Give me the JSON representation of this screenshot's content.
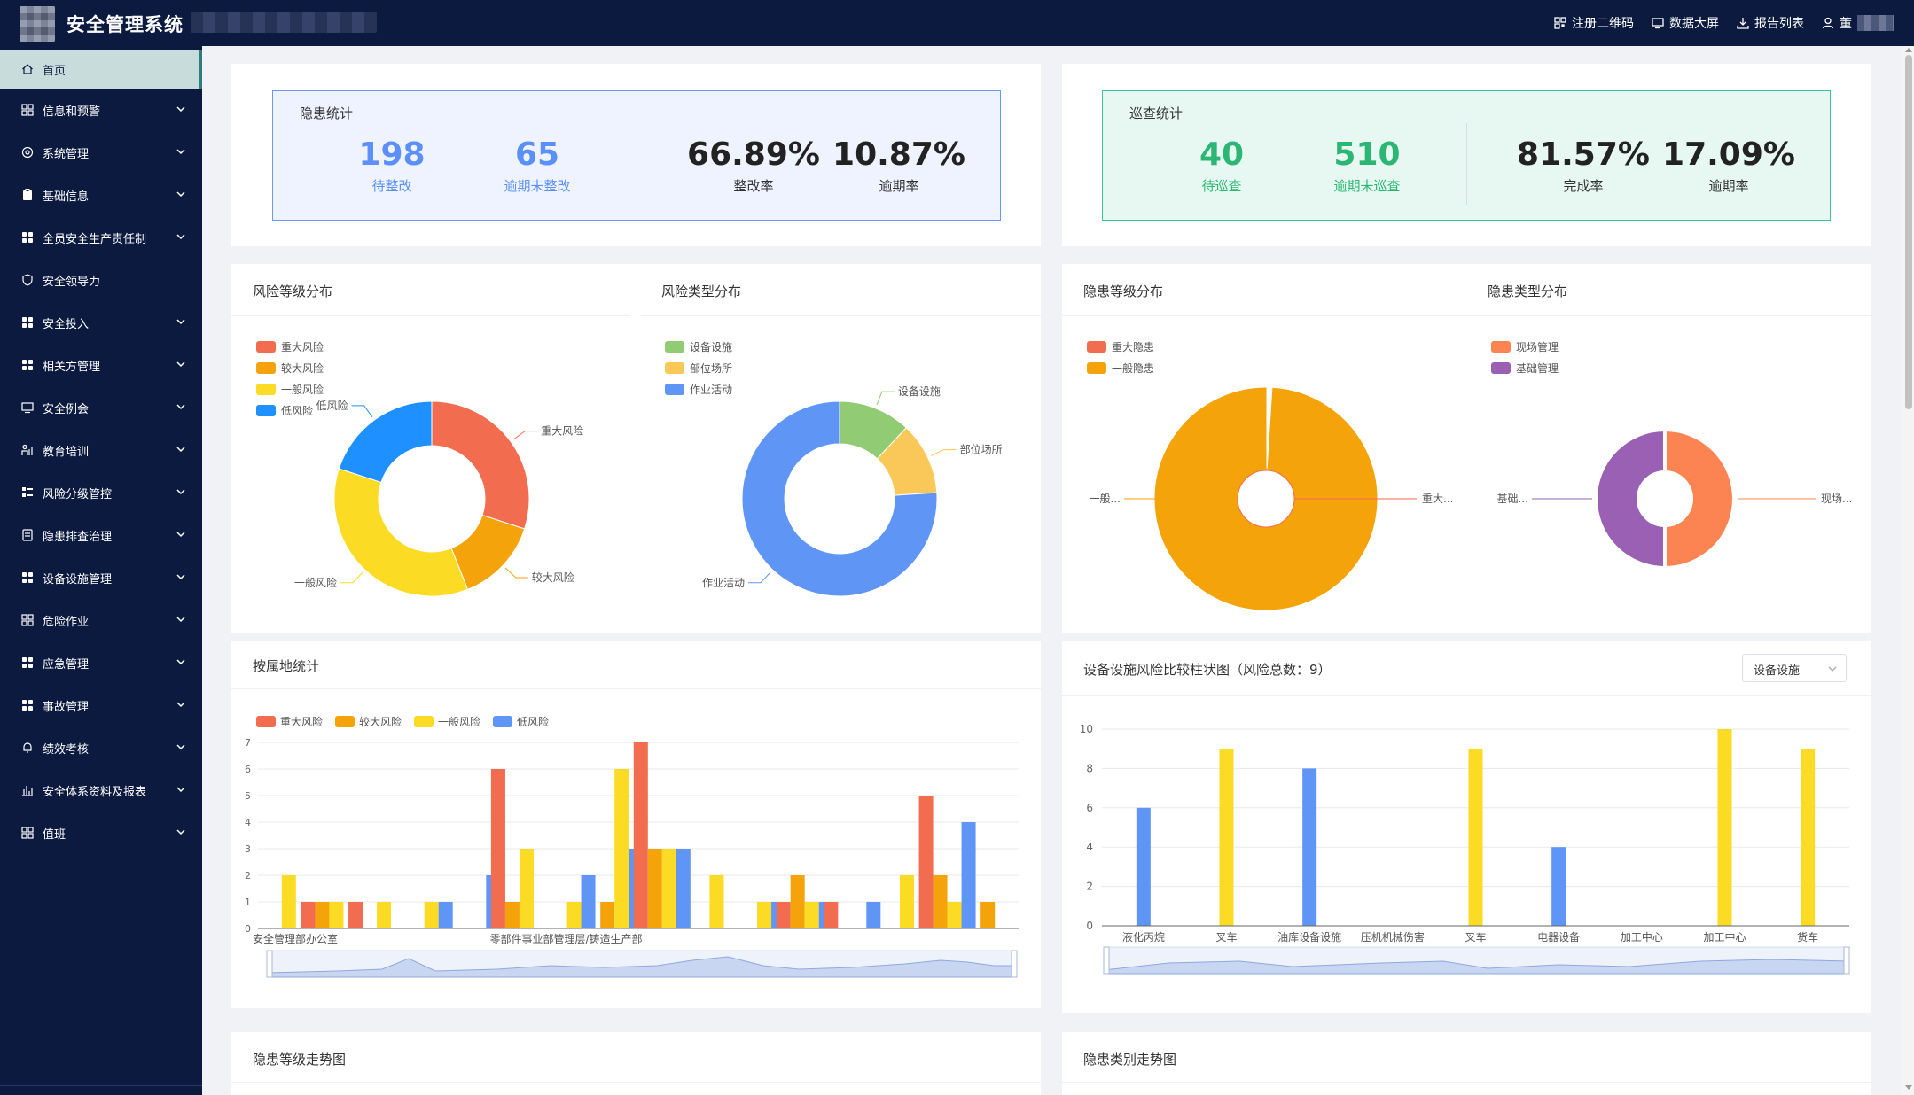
{
  "header": {
    "title": "安全管理系统",
    "actions": [
      {
        "label": "注册二维码",
        "icon": "qrcode-icon"
      },
      {
        "label": "数据大屏",
        "icon": "monitor-icon"
      },
      {
        "label": "报告列表",
        "icon": "download-icon"
      }
    ],
    "user_initial": "董"
  },
  "sidebar": {
    "items": [
      {
        "label": "首页",
        "icon": "home-icon",
        "active": true
      },
      {
        "label": "信息和预警",
        "icon": "grid-icon",
        "expandable": true
      },
      {
        "label": "系统管理",
        "icon": "target-icon",
        "expandable": true
      },
      {
        "label": "基础信息",
        "icon": "clipboard-icon",
        "expandable": true
      },
      {
        "label": "全员安全生产责任制",
        "icon": "apps-icon",
        "expandable": true
      },
      {
        "label": "安全领导力",
        "icon": "shield-icon",
        "expandable": false
      },
      {
        "label": "安全投入",
        "icon": "apps-icon",
        "expandable": true
      },
      {
        "label": "相关方管理",
        "icon": "apps-icon",
        "expandable": true
      },
      {
        "label": "安全例会",
        "icon": "monitor-icon",
        "expandable": true
      },
      {
        "label": "教育培训",
        "icon": "person-chart-icon",
        "expandable": true
      },
      {
        "label": "风险分级管控",
        "icon": "list-grid-icon",
        "expandable": true
      },
      {
        "label": "隐患排查治理",
        "icon": "document-icon",
        "expandable": true
      },
      {
        "label": "设备设施管理",
        "icon": "apps-icon",
        "expandable": true
      },
      {
        "label": "危险作业",
        "icon": "grid-icon",
        "expandable": true
      },
      {
        "label": "应急管理",
        "icon": "apps-icon",
        "expandable": true
      },
      {
        "label": "事故管理",
        "icon": "apps-icon",
        "expandable": true
      },
      {
        "label": "绩效考核",
        "icon": "bell-icon",
        "expandable": true
      },
      {
        "label": "安全体系资料及报表",
        "icon": "bar-chart-icon",
        "expandable": true
      },
      {
        "label": "值班",
        "icon": "grid-icon",
        "expandable": true
      }
    ]
  },
  "hazard_stats": {
    "title": "隐患统计",
    "items": [
      {
        "value": "198",
        "label": "待整改"
      },
      {
        "value": "65",
        "label": "逾期未整改"
      },
      {
        "value": "66.89%",
        "label": "整改率"
      },
      {
        "value": "10.87%",
        "label": "逾期率"
      }
    ]
  },
  "patrol_stats": {
    "title": "巡查统计",
    "items": [
      {
        "value": "40",
        "label": "待巡查"
      },
      {
        "value": "510",
        "label": "逾期未巡查"
      },
      {
        "value": "81.57%",
        "label": "完成率"
      },
      {
        "value": "17.09%",
        "label": "逾期率"
      }
    ]
  },
  "colors": {
    "red": "#f26c4f",
    "orange": "#f5a30a",
    "yellow": "#fbdb24",
    "blue": "#1e90ff",
    "green": "#91cb74",
    "light_orange": "#fac858",
    "cornflower": "#5f95f5",
    "coral": "#fc8452",
    "purple": "#9a60b4",
    "teal_text": "#2bb673",
    "blue_text": "#5b8ff9"
  },
  "charts_titles": {
    "risk_level": "风险等级分布",
    "risk_type": "风险类型分布",
    "hazard_level": "隐患等级分布",
    "hazard_type": "隐患类型分布",
    "by_location": "按属地统计",
    "equipment": "设备设施风险比较柱状图（风险总数：9）",
    "hazard_level_trend": "隐患等级走势图",
    "hazard_category_trend": "隐患类别走势图"
  },
  "equipment_select": "设备设施",
  "chart_data": [
    {
      "id": "risk_level",
      "type": "pie",
      "title": "风险等级分布",
      "slices": [
        {
          "label": "重大风险",
          "value": 30
        },
        {
          "label": "较大风险",
          "value": 14
        },
        {
          "label": "一般风险",
          "value": 36
        },
        {
          "label": "低风险",
          "value": 20
        }
      ],
      "legend": [
        "重大风险",
        "较大风险",
        "一般风险",
        "低风险"
      ]
    },
    {
      "id": "risk_type",
      "type": "pie",
      "title": "风险类型分布",
      "slices": [
        {
          "label": "设备设施",
          "value": 12
        },
        {
          "label": "部位场所",
          "value": 12
        },
        {
          "label": "作业活动",
          "value": 76
        }
      ],
      "legend": [
        "设备设施",
        "部位场所",
        "作业活动"
      ]
    },
    {
      "id": "hazard_level",
      "type": "pie",
      "title": "隐患等级分布",
      "rose": true,
      "slices": [
        {
          "label": "重大隐患",
          "value": 1,
          "display": "重大..."
        },
        {
          "label": "一般隐患",
          "value": 99,
          "display": "一般..."
        }
      ],
      "legend": [
        "重大隐患",
        "一般隐患"
      ]
    },
    {
      "id": "hazard_type",
      "type": "pie",
      "title": "隐患类型分布",
      "rose": true,
      "slices": [
        {
          "label": "现场管理",
          "value": 50,
          "display": "现场..."
        },
        {
          "label": "基础管理",
          "value": 50,
          "display": "基础..."
        }
      ],
      "legend": [
        "现场管理",
        "基础管理"
      ]
    },
    {
      "id": "by_location",
      "type": "bar",
      "title": "按属地统计",
      "ylim": [
        0,
        7
      ],
      "yticks": [
        "0",
        "1",
        "2",
        "3",
        "4",
        "5",
        "6",
        "7"
      ],
      "xlabels": [
        "安全管理部办公室",
        "零部件事业部管理层/铸造生产部"
      ],
      "series_names": [
        "重大风险",
        "较大风险",
        "一般风险",
        "低风险"
      ],
      "groups": [
        [
          0,
          0,
          2,
          0
        ],
        [
          1,
          1,
          1,
          0
        ],
        [
          1,
          0,
          1,
          0
        ],
        [
          0,
          0,
          1,
          1
        ],
        [
          0,
          0,
          0,
          2
        ],
        [
          6,
          1,
          3,
          0
        ],
        [
          0,
          0,
          1,
          2
        ],
        [
          0,
          1,
          6,
          3
        ],
        [
          7,
          3,
          3,
          3
        ],
        [
          0,
          0,
          2,
          0
        ],
        [
          0,
          0,
          1,
          1
        ],
        [
          1,
          2,
          1,
          1
        ],
        [
          1,
          0,
          0,
          1
        ],
        [
          0,
          0,
          2,
          0
        ],
        [
          5,
          2,
          1,
          4
        ],
        [
          0,
          1,
          0,
          0
        ]
      ]
    },
    {
      "id": "equipment",
      "type": "bar",
      "title": "设备设施风险比较柱状图（风险总数：9）",
      "ylim": [
        0,
        10
      ],
      "yticks": [
        "0",
        "2",
        "4",
        "6",
        "8",
        "10"
      ],
      "categories": [
        "液化丙烷",
        "叉车",
        "油库设备设施",
        "压机机械伤害",
        "叉车",
        "电器设备",
        "加工中心",
        "加工中心",
        "货车"
      ],
      "values": [
        6,
        9,
        8,
        0,
        9,
        4,
        0,
        10,
        9
      ],
      "series_colors": [
        "cornflower",
        "yellow",
        "cornflower",
        "cornflower",
        "yellow",
        "cornflower",
        "yellow",
        "yellow",
        "yellow"
      ]
    }
  ]
}
